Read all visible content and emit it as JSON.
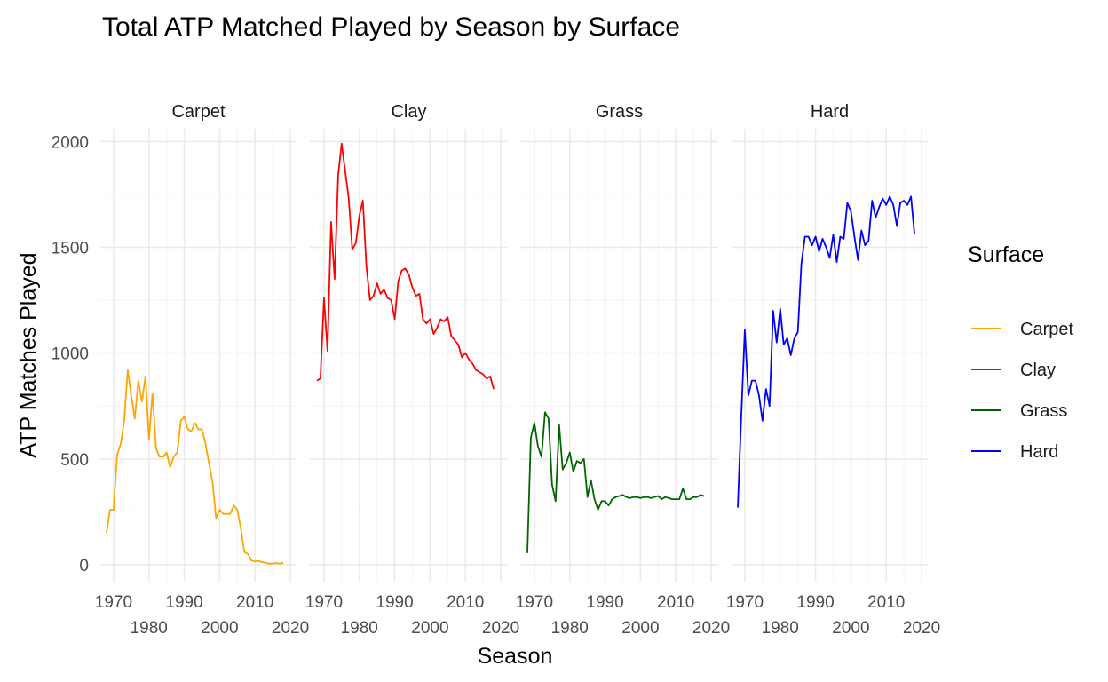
{
  "chart_data": {
    "type": "line",
    "title": "Total ATP Matched Played by Season by Surface",
    "xlabel": "Season",
    "ylabel": "ATP Matches Played",
    "xlim": [
      1966,
      2022
    ],
    "ylim": [
      -80,
      2060
    ],
    "x_ticks_top_row": [
      1970,
      1990,
      2010
    ],
    "x_ticks_bottom_row": [
      1980,
      2000,
      2020
    ],
    "y_ticks": [
      0,
      500,
      1000,
      1500,
      2000
    ],
    "grid": true,
    "legend": {
      "title": "Surface",
      "position": "right"
    },
    "panels": [
      {
        "name": "Carpet",
        "color": "#FFA500",
        "x": [
          1968,
          1969,
          1970,
          1971,
          1972,
          1973,
          1974,
          1975,
          1976,
          1977,
          1978,
          1979,
          1980,
          1981,
          1982,
          1983,
          1984,
          1985,
          1986,
          1987,
          1988,
          1989,
          1990,
          1991,
          1992,
          1993,
          1994,
          1995,
          1996,
          1997,
          1998,
          1999,
          2000,
          2001,
          2002,
          2003,
          2004,
          2005,
          2006,
          2007,
          2008,
          2009,
          2010,
          2011,
          2012,
          2013,
          2014,
          2015,
          2016,
          2017,
          2018
        ],
        "y": [
          150,
          260,
          260,
          520,
          570,
          680,
          920,
          800,
          690,
          870,
          770,
          890,
          590,
          810,
          550,
          510,
          510,
          530,
          460,
          510,
          530,
          680,
          700,
          640,
          630,
          670,
          640,
          640,
          570,
          480,
          390,
          220,
          260,
          240,
          240,
          240,
          280,
          260,
          170,
          60,
          50,
          20,
          15,
          18,
          12,
          10,
          5,
          5,
          8,
          5,
          10
        ]
      },
      {
        "name": "Clay",
        "color": "#FF0000",
        "x": [
          1968,
          1969,
          1970,
          1971,
          1972,
          1973,
          1974,
          1975,
          1976,
          1977,
          1978,
          1979,
          1980,
          1981,
          1982,
          1983,
          1984,
          1985,
          1986,
          1987,
          1988,
          1989,
          1990,
          1991,
          1992,
          1993,
          1994,
          1995,
          1996,
          1997,
          1998,
          1999,
          2000,
          2001,
          2002,
          2003,
          2004,
          2005,
          2006,
          2007,
          2008,
          2009,
          2010,
          2011,
          2012,
          2013,
          2014,
          2015,
          2016,
          2017,
          2018
        ],
        "y": [
          870,
          880,
          1260,
          1010,
          1620,
          1350,
          1840,
          1990,
          1860,
          1730,
          1490,
          1520,
          1650,
          1720,
          1410,
          1250,
          1270,
          1330,
          1280,
          1300,
          1260,
          1250,
          1160,
          1340,
          1390,
          1400,
          1370,
          1310,
          1270,
          1280,
          1160,
          1140,
          1160,
          1090,
          1120,
          1160,
          1150,
          1170,
          1080,
          1060,
          1040,
          980,
          1000,
          970,
          950,
          920,
          910,
          900,
          880,
          890,
          830
        ]
      },
      {
        "name": "Grass",
        "color": "#006400",
        "x": [
          1968,
          1969,
          1970,
          1971,
          1972,
          1973,
          1974,
          1975,
          1976,
          1977,
          1978,
          1979,
          1980,
          1981,
          1982,
          1983,
          1984,
          1985,
          1986,
          1987,
          1988,
          1989,
          1990,
          1991,
          1992,
          1993,
          1994,
          1995,
          1996,
          1997,
          1998,
          1999,
          2000,
          2001,
          2002,
          2003,
          2004,
          2005,
          2006,
          2007,
          2008,
          2009,
          2010,
          2011,
          2012,
          2013,
          2014,
          2015,
          2016,
          2017,
          2018
        ],
        "y": [
          55,
          600,
          670,
          560,
          510,
          720,
          690,
          380,
          300,
          660,
          450,
          480,
          530,
          440,
          490,
          480,
          500,
          320,
          400,
          310,
          260,
          300,
          300,
          280,
          310,
          320,
          325,
          330,
          320,
          315,
          320,
          320,
          315,
          320,
          320,
          315,
          320,
          325,
          310,
          320,
          315,
          310,
          310,
          310,
          360,
          310,
          310,
          320,
          320,
          330,
          325
        ]
      },
      {
        "name": "Hard",
        "color": "#0000FF",
        "x": [
          1968,
          1969,
          1970,
          1971,
          1972,
          1973,
          1974,
          1975,
          1976,
          1977,
          1978,
          1979,
          1980,
          1981,
          1982,
          1983,
          1984,
          1985,
          1986,
          1987,
          1988,
          1989,
          1990,
          1991,
          1992,
          1993,
          1994,
          1995,
          1996,
          1997,
          1998,
          1999,
          2000,
          2001,
          2002,
          2003,
          2004,
          2005,
          2006,
          2007,
          2008,
          2009,
          2010,
          2011,
          2012,
          2013,
          2014,
          2015,
          2016,
          2017,
          2018
        ],
        "y": [
          270,
          700,
          1110,
          800,
          870,
          870,
          800,
          680,
          830,
          750,
          1200,
          1050,
          1210,
          1040,
          1070,
          990,
          1070,
          1100,
          1420,
          1550,
          1550,
          1510,
          1550,
          1480,
          1540,
          1500,
          1450,
          1560,
          1430,
          1550,
          1540,
          1710,
          1670,
          1550,
          1440,
          1580,
          1510,
          1530,
          1720,
          1640,
          1690,
          1730,
          1700,
          1740,
          1700,
          1600,
          1710,
          1720,
          1700,
          1740,
          1560
        ]
      }
    ]
  }
}
